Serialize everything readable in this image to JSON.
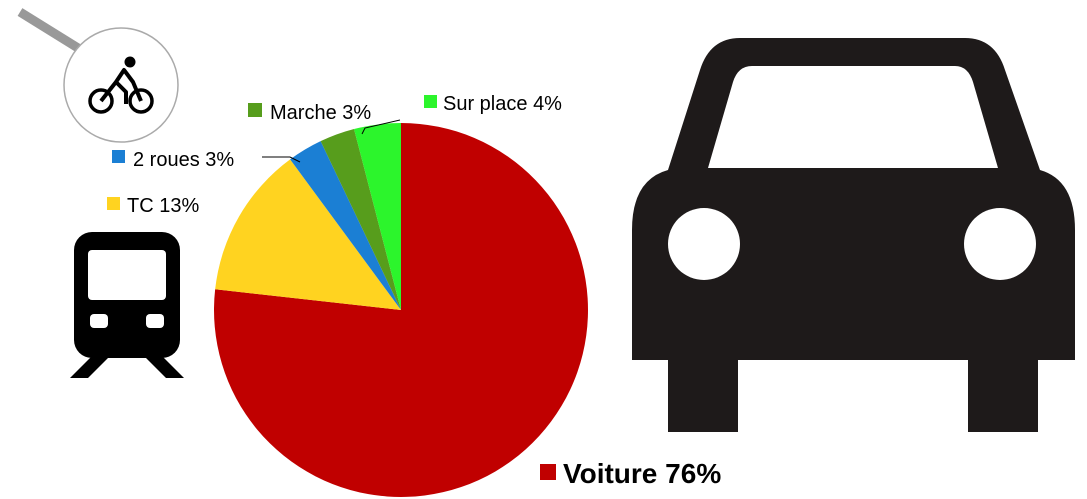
{
  "chart_data": {
    "type": "pie",
    "categories": [
      "Voiture",
      "TC",
      "2 roues",
      "Marche",
      "Sur place"
    ],
    "values": [
      76,
      13,
      3,
      3,
      4
    ],
    "value_labels": [
      "76%",
      "13%",
      "3%",
      "3%",
      "4%"
    ],
    "colors": [
      "#c00000",
      "#ffd320",
      "#1b7fd4",
      "#579d1c",
      "#2cf52c"
    ]
  }
}
